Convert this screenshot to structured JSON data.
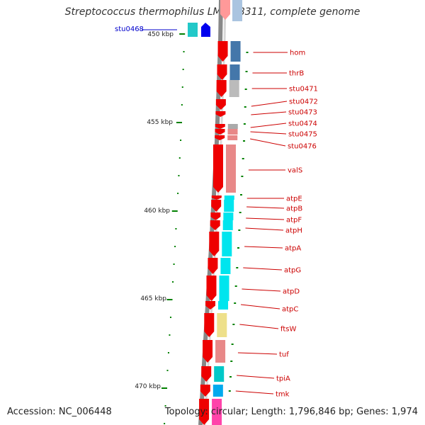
{
  "title": "Streptococcus thermophilus LMG 18311, complete genome",
  "accession": "Accession: NC_006448",
  "topology": "Topology: circular; Length: 1,796,846 bp; Genes: 1,974",
  "colors": {
    "cds_red": "#ee0000",
    "other_blue": "#0000ee",
    "label_red": "#cc0000",
    "label_blue": "#0000cc",
    "tick_green": "#008000",
    "backbone_gray": "#888888"
  },
  "ruler_labels": [
    "450 kbp",
    "455 kbp",
    "460 kbp",
    "465 kbp",
    "470 kbp"
  ],
  "left_label": "stu0468",
  "gene_labels": [
    "hom",
    "thrB",
    "stu0471",
    "stu0472",
    "stu0473",
    "stu0474",
    "stu0475",
    "stu0476",
    "valS",
    "atpE",
    "atpB",
    "atpF",
    "atpH",
    "atpA",
    "atpG",
    "atpD",
    "atpC",
    "ftsW",
    "tuf",
    "tpiA",
    "tmk"
  ],
  "annotation_colors": [
    "#4477aa",
    "#4477aa",
    "#bbbbbb",
    "#ffffff",
    "#ffffff",
    "#aaaaaa",
    "#e88888",
    "#e88888",
    "#e88888",
    "#00e5ee",
    "#00e5ee",
    "#00e5ee",
    "#00e5ee",
    "#00e5ee",
    "#00e5ee",
    "#00e5ee",
    "#00e5ee",
    "#eee08a",
    "#e88888",
    "#00c8c8",
    "#00aaee",
    "#ff44aa"
  ]
}
